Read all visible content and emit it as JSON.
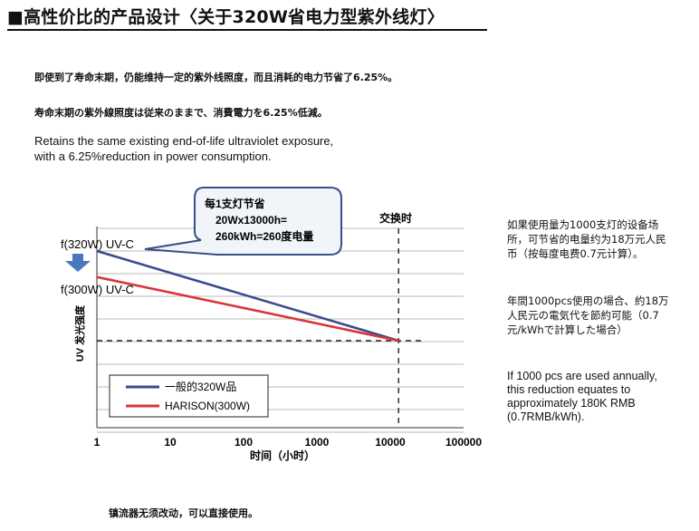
{
  "title": "■高性价比的产品设计〈关于320W省电力型紫外线灯〉",
  "intro": {
    "line_cn": "即使到了寿命末期，仍能维持一定的紫外线照度，而且消耗的电力节省了6.25%。",
    "line_jp": "寿命末期の紫外線照度は従来のままで、消費電力を6.25%低減。",
    "line_en_1": "Retains the same existing end-of-life ultraviolet exposure,",
    "line_en_2": "with a 6.25%reduction in power consumption."
  },
  "callout": {
    "line1": "每1支灯节省",
    "line2": "20Wx13000h=",
    "line3": "260kWh=260度电量"
  },
  "annotations": {
    "exchange_time": "交换时",
    "label_320": "f(320W) UV-C",
    "label_300": "f(300W) UV-C"
  },
  "side_notes": {
    "cn_1": "如果使用量为1000支灯的设备场",
    "cn_2": "所，可节省的电量约为18万元人民",
    "cn_3": "币（按每度电费0.7元计算）。",
    "jp_1": "年間1000pcs使用の場合、約18万",
    "jp_2": "人民元の電気代を節約可能（0.7",
    "jp_3": "元/kWhで計算した場合）",
    "en_1": "If 1000 pcs are used annually,",
    "en_2": "this reduction equates to",
    "en_3": "approximately 180K RMB",
    "en_4": "(0.7RMB/kWh)."
  },
  "footer": "镇流器无须改动，可以直接使用。",
  "colors": {
    "series_320": "#3b4a8c",
    "series_300": "#d9343c",
    "arrow": "#4a78c0",
    "callout_fill": "#f1f4f8",
    "callout_border": "#3b4f86"
  },
  "chart_data": {
    "type": "line",
    "xscale": "log",
    "xlabel": "时间（小时）",
    "ylabel": "UV 发光强度",
    "xticks": [
      "1",
      "10",
      "100",
      "1000",
      "10000",
      "100000"
    ],
    "xlim": [
      1,
      100000
    ],
    "grid": true,
    "legend_position": "bottom-left",
    "series": [
      {
        "name": "一般的320W品",
        "x": [
          1,
          13000
        ],
        "y": [
          1.0,
          0.0
        ],
        "color": "#3b4a8c"
      },
      {
        "name": "HARISON(300W)",
        "x": [
          1,
          13000
        ],
        "y": [
          0.71,
          0.0
        ],
        "color": "#d9343c"
      }
    ],
    "exchange_time_x": 13000
  }
}
